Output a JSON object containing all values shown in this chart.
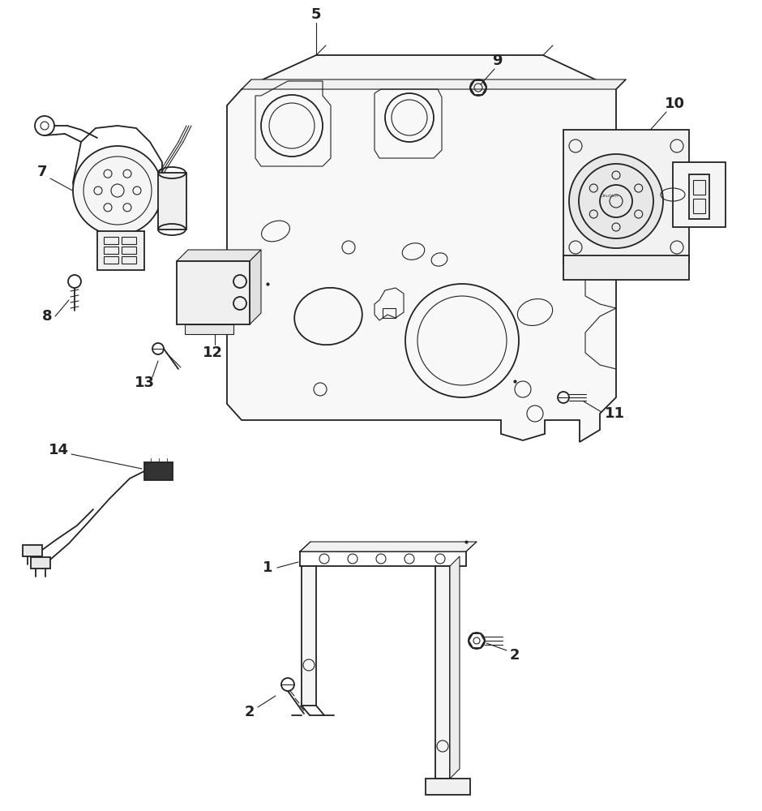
{
  "bg_color": "#ffffff",
  "line_color": "#222222",
  "fig_width": 9.4,
  "fig_height": 10.0,
  "dpi": 100
}
